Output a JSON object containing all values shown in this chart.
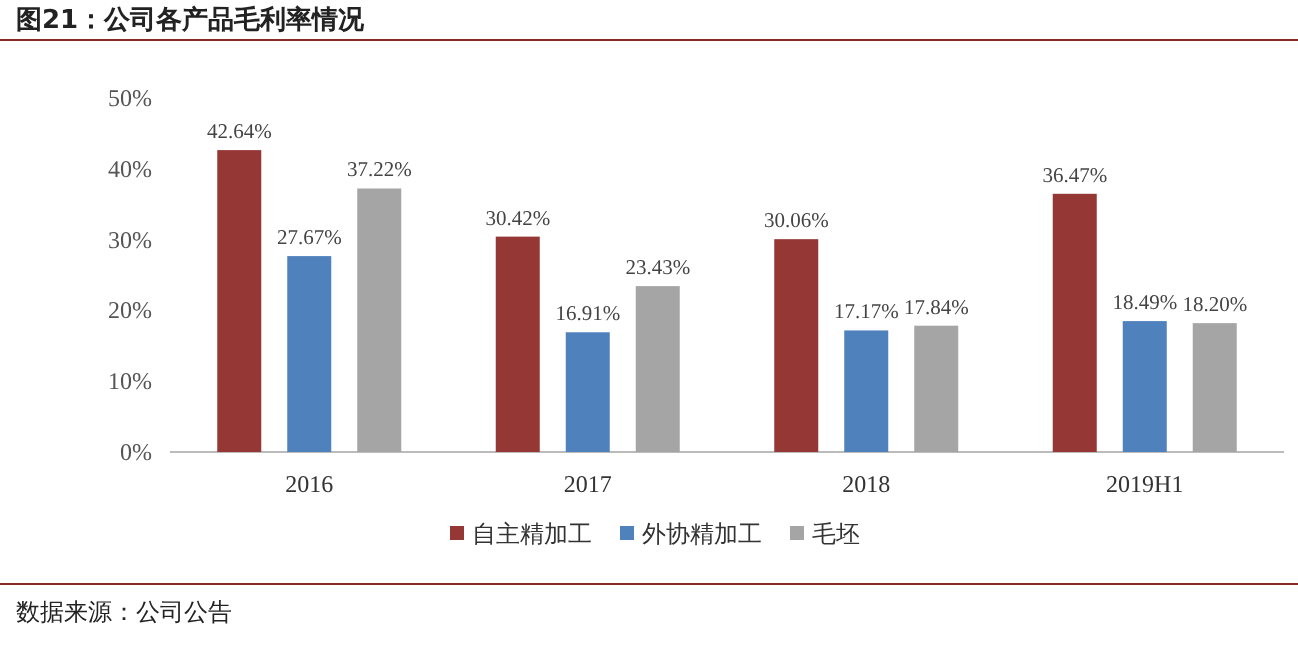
{
  "chart_data": {
    "type": "bar",
    "title": "图21：公司各产品毛利率情况",
    "annotations": [
      "数据来源：公司公告"
    ],
    "categories": [
      "2016",
      "2017",
      "2018",
      "2019H1"
    ],
    "series": [
      {
        "name": "自主精加工",
        "color": "#953735",
        "values": [
          42.64,
          30.42,
          30.06,
          36.47
        ],
        "value_labels": [
          "42.64%",
          "30.42%",
          "30.06%",
          "36.47%"
        ]
      },
      {
        "name": "外协精加工",
        "color": "#4f81bd",
        "values": [
          27.67,
          16.91,
          17.17,
          18.49
        ],
        "value_labels": [
          "27.67%",
          "16.91%",
          "17.17%",
          "18.49%"
        ]
      },
      {
        "name": "毛坯",
        "color": "#a5a5a5",
        "values": [
          37.22,
          23.43,
          17.84,
          18.2
        ],
        "value_labels": [
          "37.22%",
          "23.43%",
          "17.84%",
          "18.20%"
        ]
      }
    ],
    "ylim": [
      0,
      50
    ],
    "yticks": [
      {
        "value": 0,
        "label": "0%"
      },
      {
        "value": 10,
        "label": "10%"
      },
      {
        "value": 20,
        "label": "20%"
      },
      {
        "value": 30,
        "label": "30%"
      },
      {
        "value": 40,
        "label": "40%"
      },
      {
        "value": 50,
        "label": "50%"
      }
    ],
    "legend": "bottom",
    "grid": false
  }
}
